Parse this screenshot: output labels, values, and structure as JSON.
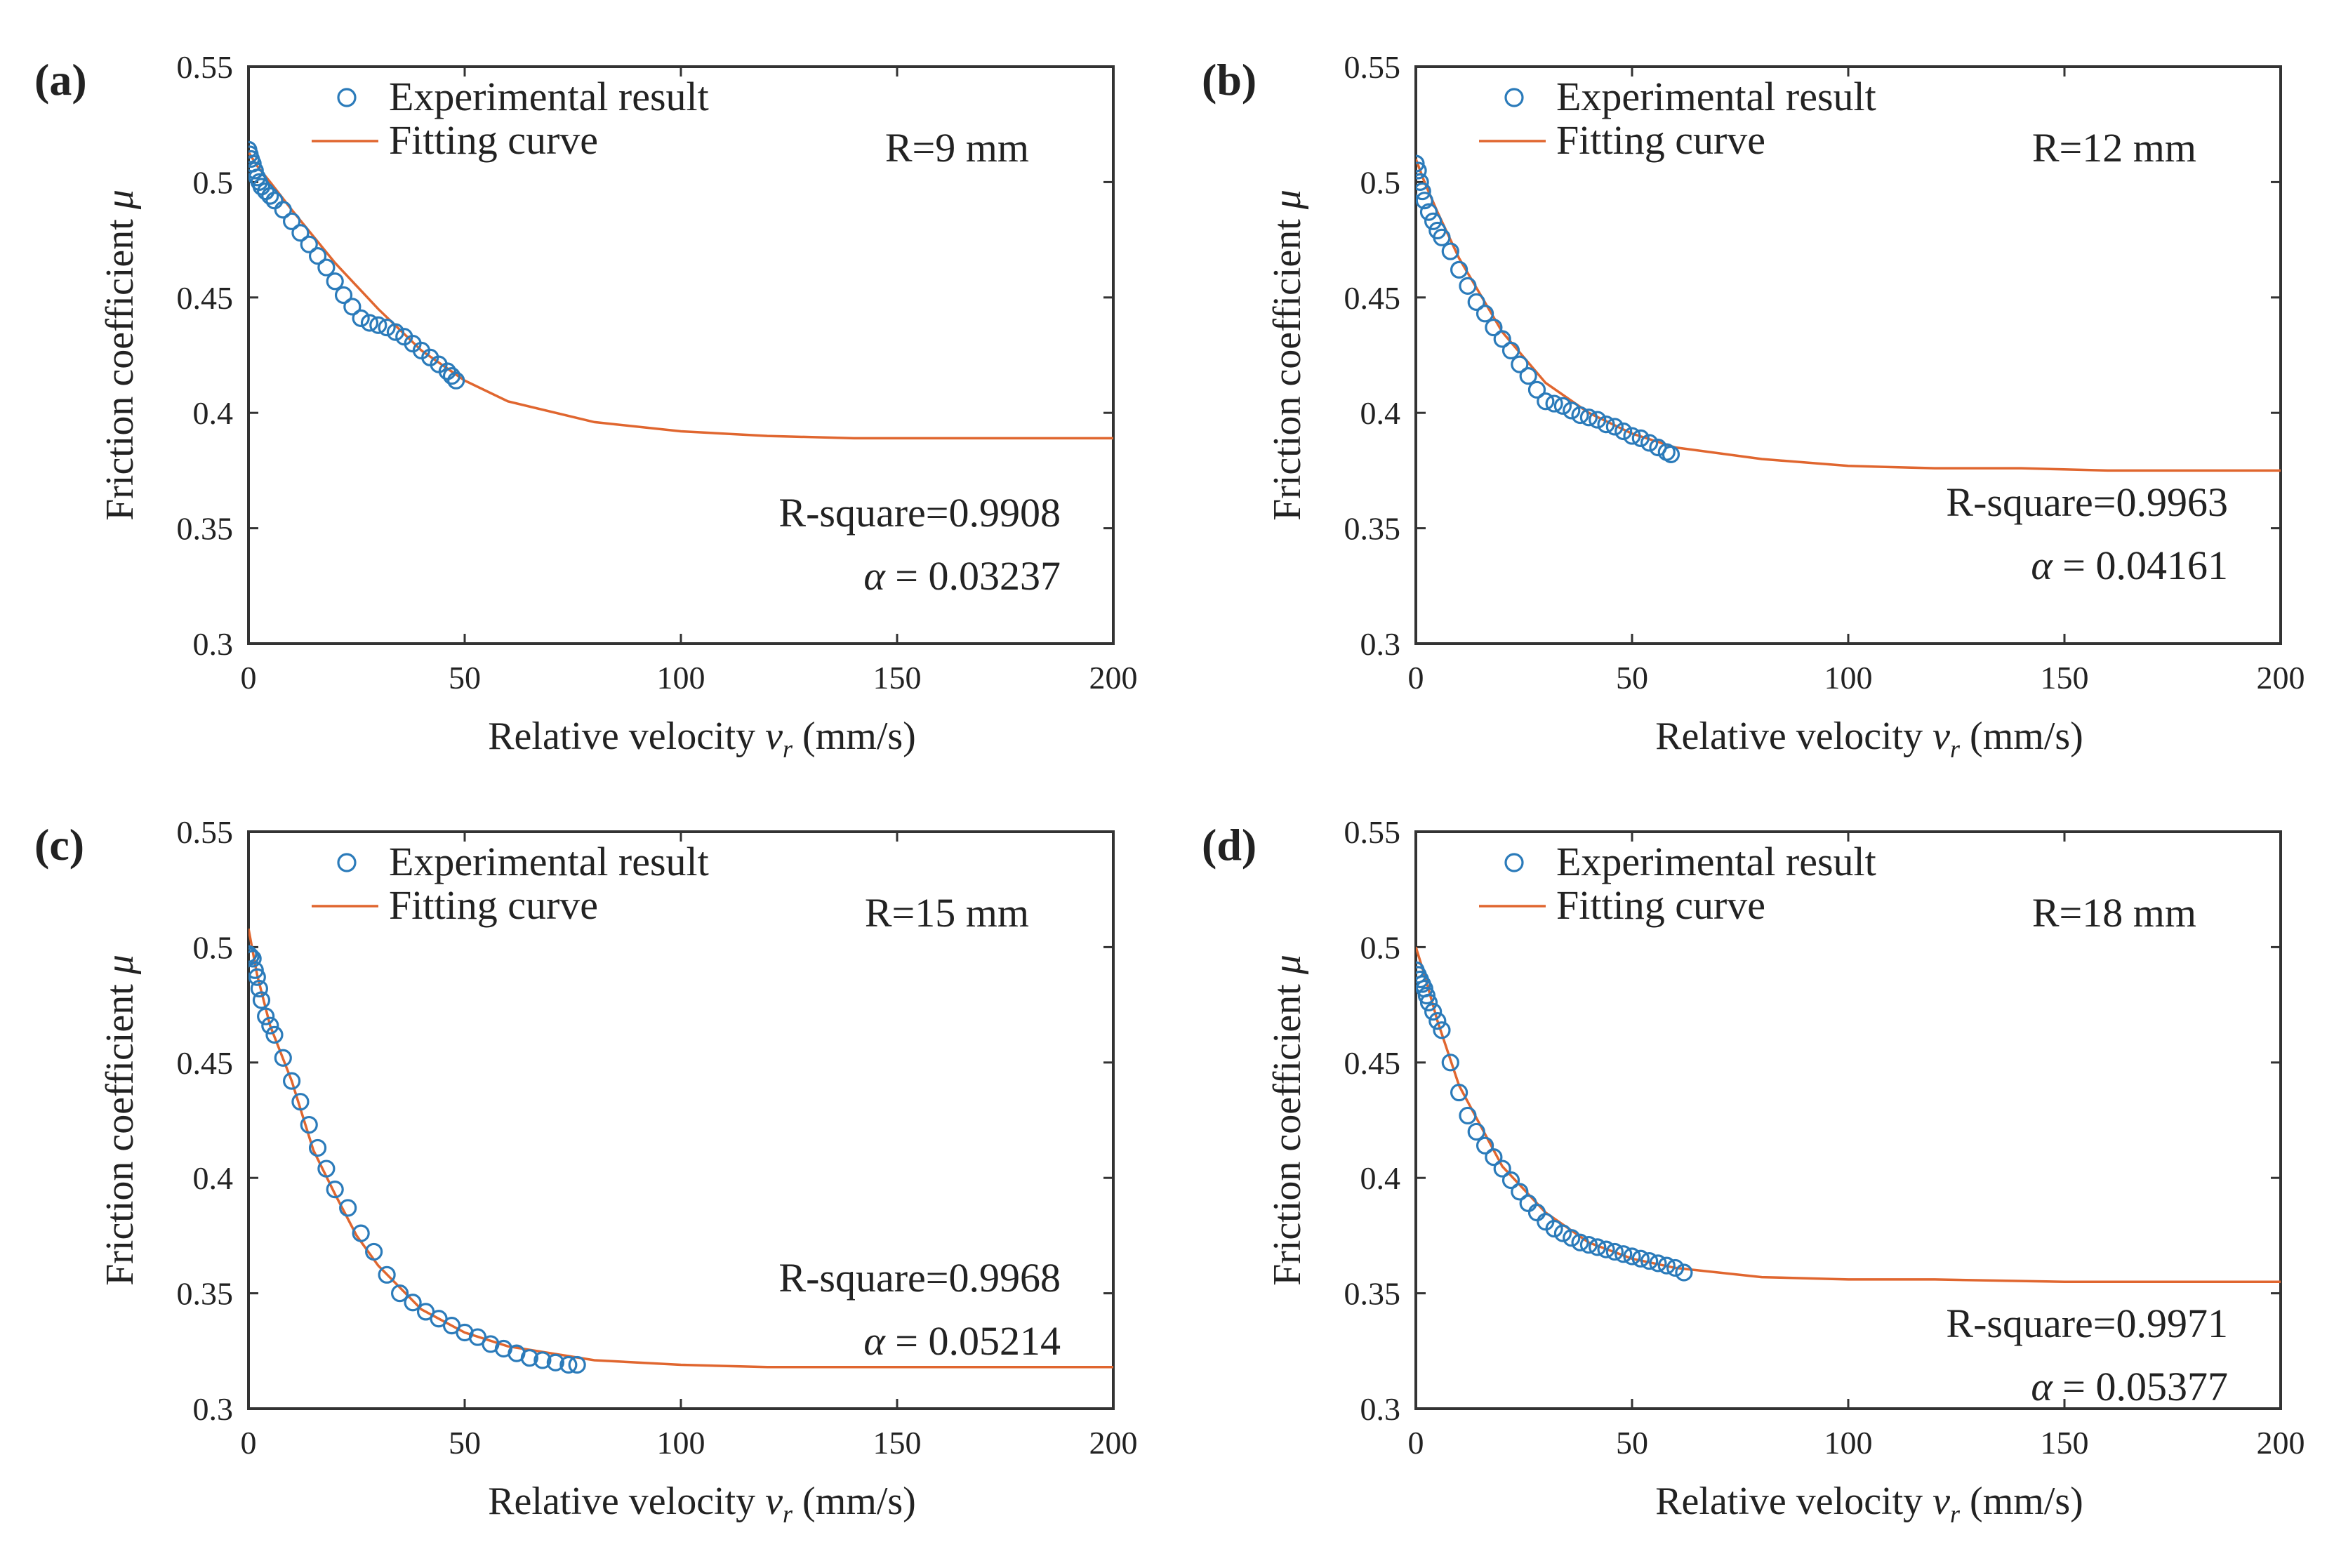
{
  "chart_data": [
    {
      "type": "scatter",
      "panel_label": "(a)",
      "xlabel": "Relative velocity",
      "xlabel_symbol": "v",
      "xlabel_subscript": "r",
      "xlabel_unit": "(mm/s)",
      "ylabel": "Friction coefficient",
      "ylabel_symbol": "μ",
      "xlim": [
        0,
        200
      ],
      "ylim": [
        0.3,
        0.55
      ],
      "x_ticks": [
        "0",
        "50",
        "100",
        "150",
        "200"
      ],
      "y_ticks": [
        "0.3",
        "0.35",
        "0.4",
        "0.45",
        "0.5",
        "0.55"
      ],
      "legend": {
        "position": "top-left",
        "entries": [
          "Experimental result",
          "Fitting curve"
        ]
      },
      "radius_label": "R=9 mm",
      "r_square_label": "R-square=0.9908",
      "alpha_symbol": "α",
      "alpha_text": "= 0.03237",
      "series": [
        {
          "name": "Experimental result",
          "kind": "markers",
          "x": [
            0,
            0.3,
            0.6,
            1,
            1.5,
            2,
            2.5,
            3,
            4,
            5,
            6,
            8,
            10,
            12,
            14,
            16,
            18,
            20,
            22,
            24,
            26,
            28,
            30,
            32,
            34,
            36,
            38,
            40,
            42,
            44,
            46,
            47,
            48
          ],
          "y": [
            0.514,
            0.512,
            0.51,
            0.508,
            0.505,
            0.502,
            0.5,
            0.498,
            0.496,
            0.494,
            0.492,
            0.488,
            0.483,
            0.478,
            0.473,
            0.468,
            0.463,
            0.457,
            0.451,
            0.446,
            0.441,
            0.439,
            0.438,
            0.437,
            0.435,
            0.433,
            0.43,
            0.427,
            0.424,
            0.421,
            0.418,
            0.416,
            0.414
          ]
        },
        {
          "name": "Fitting curve",
          "kind": "line",
          "x": [
            0,
            2,
            5,
            10,
            20,
            30,
            40,
            50,
            60,
            80,
            100,
            120,
            140,
            160,
            180,
            200
          ],
          "y": [
            0.513,
            0.507,
            0.5,
            0.488,
            0.465,
            0.445,
            0.427,
            0.414,
            0.405,
            0.396,
            0.392,
            0.39,
            0.389,
            0.389,
            0.389,
            0.389
          ]
        }
      ]
    },
    {
      "type": "scatter",
      "panel_label": "(b)",
      "xlabel": "Relative velocity",
      "xlabel_symbol": "v",
      "xlabel_subscript": "r",
      "xlabel_unit": "(mm/s)",
      "ylabel": "Friction coefficient",
      "ylabel_symbol": "μ",
      "xlim": [
        0,
        200
      ],
      "ylim": [
        0.3,
        0.55
      ],
      "x_ticks": [
        "0",
        "50",
        "100",
        "150",
        "200"
      ],
      "y_ticks": [
        "0.3",
        "0.35",
        "0.4",
        "0.45",
        "0.5",
        "0.55"
      ],
      "legend": {
        "position": "top-left",
        "entries": [
          "Experimental result",
          "Fitting curve"
        ]
      },
      "radius_label": "R=12 mm",
      "r_square_label": "R-square=0.9963",
      "alpha_symbol": "α",
      "alpha_text": "= 0.04161",
      "series": [
        {
          "name": "Experimental result",
          "kind": "markers",
          "x": [
            0,
            0.5,
            1,
            1.5,
            2,
            3,
            4,
            5,
            6,
            8,
            10,
            12,
            14,
            16,
            18,
            20,
            22,
            24,
            26,
            28,
            30,
            32,
            34,
            36,
            38,
            40,
            42,
            44,
            46,
            48,
            50,
            52,
            54,
            56,
            58,
            59
          ],
          "y": [
            0.508,
            0.505,
            0.5,
            0.496,
            0.492,
            0.487,
            0.483,
            0.479,
            0.476,
            0.47,
            0.462,
            0.455,
            0.448,
            0.443,
            0.437,
            0.432,
            0.427,
            0.421,
            0.416,
            0.41,
            0.405,
            0.404,
            0.403,
            0.401,
            0.399,
            0.398,
            0.397,
            0.395,
            0.394,
            0.392,
            0.39,
            0.389,
            0.387,
            0.385,
            0.383,
            0.382
          ]
        },
        {
          "name": "Fitting curve",
          "kind": "line",
          "x": [
            0,
            2,
            5,
            10,
            20,
            30,
            40,
            50,
            60,
            80,
            100,
            120,
            140,
            160,
            180,
            200
          ],
          "y": [
            0.51,
            0.5,
            0.487,
            0.467,
            0.435,
            0.413,
            0.4,
            0.391,
            0.385,
            0.38,
            0.377,
            0.376,
            0.376,
            0.375,
            0.375,
            0.375
          ]
        }
      ]
    },
    {
      "type": "scatter",
      "panel_label": "(c)",
      "xlabel": "Relative velocity",
      "xlabel_symbol": "v",
      "xlabel_subscript": "r",
      "xlabel_unit": "(mm/s)",
      "ylabel": "Friction coefficient",
      "ylabel_symbol": "μ",
      "xlim": [
        0,
        200
      ],
      "ylim": [
        0.3,
        0.55
      ],
      "x_ticks": [
        "0",
        "50",
        "100",
        "150",
        "200"
      ],
      "y_ticks": [
        "0.3",
        "0.35",
        "0.4",
        "0.45",
        "0.5",
        "0.55"
      ],
      "legend": {
        "position": "top-left",
        "entries": [
          "Experimental result",
          "Fitting curve"
        ]
      },
      "radius_label": "R=15 mm",
      "r_square_label": "R-square=0.9968",
      "alpha_symbol": "α",
      "alpha_text": "= 0.05214",
      "series": [
        {
          "name": "Experimental result",
          "kind": "markers",
          "x": [
            0,
            0.5,
            1,
            1.5,
            2,
            2.5,
            3,
            4,
            5,
            6,
            8,
            10,
            12,
            14,
            16,
            18,
            20,
            23,
            26,
            29,
            32,
            35,
            38,
            41,
            44,
            47,
            50,
            53,
            56,
            59,
            62,
            65,
            68,
            71,
            74,
            76
          ],
          "y": [
            0.497,
            0.496,
            0.495,
            0.49,
            0.487,
            0.482,
            0.477,
            0.47,
            0.466,
            0.462,
            0.452,
            0.442,
            0.433,
            0.423,
            0.413,
            0.404,
            0.395,
            0.387,
            0.376,
            0.368,
            0.358,
            0.35,
            0.346,
            0.342,
            0.339,
            0.336,
            0.333,
            0.331,
            0.328,
            0.326,
            0.324,
            0.322,
            0.321,
            0.32,
            0.319,
            0.319
          ]
        },
        {
          "name": "Fitting curve",
          "kind": "line",
          "x": [
            0,
            2,
            5,
            10,
            15,
            20,
            25,
            30,
            40,
            50,
            60,
            80,
            100,
            120,
            150,
            200
          ],
          "y": [
            0.508,
            0.488,
            0.466,
            0.442,
            0.412,
            0.393,
            0.375,
            0.362,
            0.343,
            0.333,
            0.327,
            0.321,
            0.319,
            0.318,
            0.318,
            0.318
          ]
        }
      ]
    },
    {
      "type": "scatter",
      "panel_label": "(d)",
      "xlabel": "Relative velocity",
      "xlabel_symbol": "v",
      "xlabel_subscript": "r",
      "xlabel_unit": "(mm/s)",
      "ylabel": "Friction coefficient",
      "ylabel_symbol": "μ",
      "xlim": [
        0,
        200
      ],
      "ylim": [
        0.3,
        0.55
      ],
      "x_ticks": [
        "0",
        "50",
        "100",
        "150",
        "200"
      ],
      "y_ticks": [
        "0.3",
        "0.35",
        "0.4",
        "0.45",
        "0.5",
        "0.55"
      ],
      "legend": {
        "position": "top-left",
        "entries": [
          "Experimental result",
          "Fitting curve"
        ]
      },
      "radius_label": "R=18 mm",
      "r_square_label": "R-square=0.9971",
      "alpha_symbol": "α",
      "alpha_text": "= 0.05377",
      "series": [
        {
          "name": "Experimental result",
          "kind": "markers",
          "x": [
            0,
            0.5,
            1,
            1.5,
            2,
            2.5,
            3,
            4,
            5,
            6,
            8,
            10,
            12,
            14,
            16,
            18,
            20,
            22,
            24,
            26,
            28,
            30,
            32,
            34,
            36,
            38,
            40,
            42,
            44,
            46,
            48,
            50,
            52,
            54,
            56,
            58,
            60,
            62
          ],
          "y": [
            0.49,
            0.488,
            0.486,
            0.484,
            0.482,
            0.479,
            0.476,
            0.472,
            0.468,
            0.464,
            0.45,
            0.437,
            0.427,
            0.42,
            0.414,
            0.409,
            0.404,
            0.399,
            0.394,
            0.389,
            0.385,
            0.381,
            0.378,
            0.376,
            0.374,
            0.372,
            0.371,
            0.37,
            0.369,
            0.368,
            0.367,
            0.366,
            0.365,
            0.364,
            0.363,
            0.362,
            0.361,
            0.359
          ]
        },
        {
          "name": "Fitting curve",
          "kind": "line",
          "x": [
            0,
            2,
            5,
            10,
            20,
            30,
            40,
            50,
            60,
            80,
            100,
            120,
            150,
            200
          ],
          "y": [
            0.5,
            0.488,
            0.468,
            0.44,
            0.405,
            0.385,
            0.372,
            0.365,
            0.361,
            0.357,
            0.356,
            0.356,
            0.355,
            0.355
          ]
        }
      ]
    }
  ],
  "colors": {
    "marker": "#2b7bba",
    "fit_line": "#e0662f",
    "axes": "#333333",
    "text": "#222222"
  }
}
